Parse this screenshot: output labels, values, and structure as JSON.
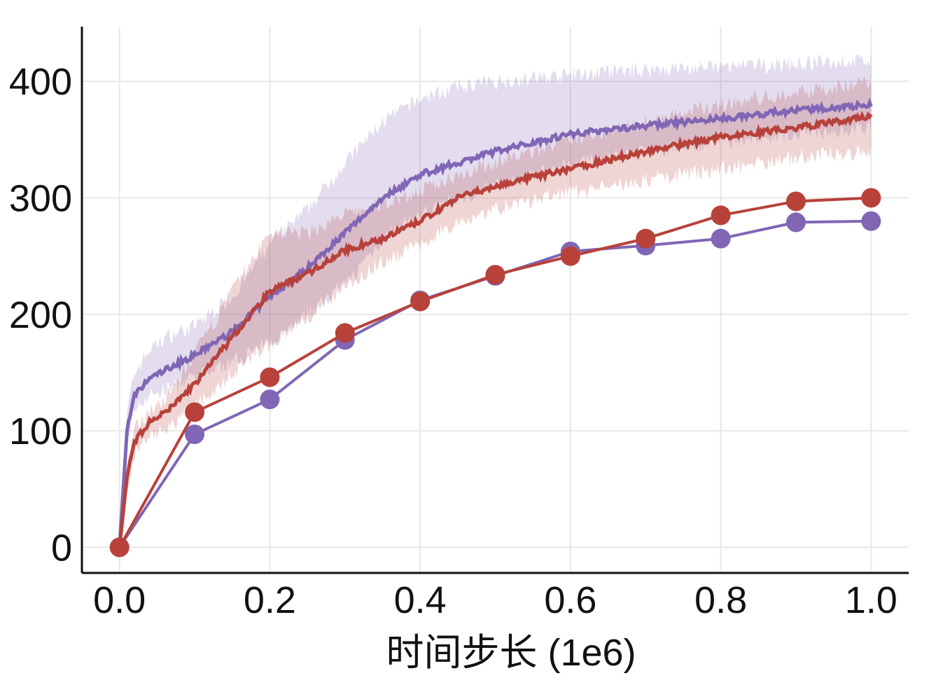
{
  "chart_data": {
    "type": "line",
    "title": "",
    "xlabel": "时间步长 (1e6)",
    "ylabel": "",
    "xlim": [
      -0.05,
      1.05
    ],
    "ylim": [
      -22,
      447
    ],
    "grid": true,
    "legend": "none",
    "xticks": [
      0.0,
      0.2,
      0.4,
      0.6,
      0.8,
      1.0
    ],
    "xtick_labels": [
      "0.0",
      "0.2",
      "0.4",
      "0.6",
      "0.8",
      "1.0"
    ],
    "yticks": [
      0,
      100,
      200,
      300,
      400
    ],
    "ytick_labels": [
      "0",
      "100",
      "200",
      "300",
      "400"
    ],
    "colors": {
      "purple": "#8066b5",
      "red": "#b8413a"
    },
    "series": [
      {
        "kind": "smoothed-with-band",
        "color": "#8066b5",
        "x": [
          0,
          0.01,
          0.02,
          0.04,
          0.06,
          0.1,
          0.15,
          0.2,
          0.25,
          0.3,
          0.35,
          0.4,
          0.45,
          0.5,
          0.6,
          0.7,
          0.8,
          0.9,
          1.0
        ],
        "y": [
          0,
          100,
          130,
          145,
          152,
          165,
          185,
          215,
          240,
          270,
          300,
          320,
          330,
          340,
          355,
          362,
          368,
          375,
          380
        ],
        "lower": [
          0,
          90,
          120,
          130,
          135,
          145,
          160,
          175,
          200,
          225,
          265,
          285,
          300,
          310,
          330,
          340,
          348,
          355,
          360
        ],
        "upper": [
          0,
          115,
          150,
          170,
          180,
          190,
          215,
          260,
          290,
          330,
          365,
          385,
          395,
          400,
          405,
          410,
          412,
          415,
          418
        ]
      },
      {
        "kind": "smoothed-with-band",
        "color": "#b8413a",
        "x": [
          0,
          0.01,
          0.02,
          0.04,
          0.06,
          0.1,
          0.15,
          0.2,
          0.25,
          0.3,
          0.35,
          0.4,
          0.45,
          0.5,
          0.6,
          0.7,
          0.8,
          0.9,
          1.0
        ],
        "y": [
          0,
          60,
          90,
          108,
          115,
          140,
          180,
          220,
          235,
          255,
          265,
          280,
          300,
          310,
          325,
          340,
          352,
          360,
          370
        ],
        "lower": [
          0,
          50,
          80,
          95,
          100,
          120,
          150,
          175,
          195,
          225,
          245,
          260,
          280,
          290,
          305,
          315,
          325,
          335,
          340
        ],
        "upper": [
          0,
          70,
          100,
          118,
          125,
          165,
          220,
          270,
          270,
          285,
          295,
          305,
          320,
          330,
          350,
          365,
          380,
          390,
          400
        ]
      },
      {
        "kind": "markers",
        "color": "#8066b5",
        "x": [
          0,
          0.1,
          0.2,
          0.3,
          0.4,
          0.5,
          0.6,
          0.7,
          0.8,
          0.9,
          1.0
        ],
        "y": [
          0,
          97,
          127,
          178,
          212,
          233,
          254,
          259,
          265,
          279,
          280
        ]
      },
      {
        "kind": "markers",
        "color": "#b8413a",
        "x": [
          0,
          0.1,
          0.2,
          0.3,
          0.4,
          0.5,
          0.6,
          0.7,
          0.8,
          0.9,
          1.0
        ],
        "y": [
          0,
          116,
          146,
          184,
          211,
          234,
          250,
          265,
          285,
          297,
          300
        ]
      }
    ]
  }
}
